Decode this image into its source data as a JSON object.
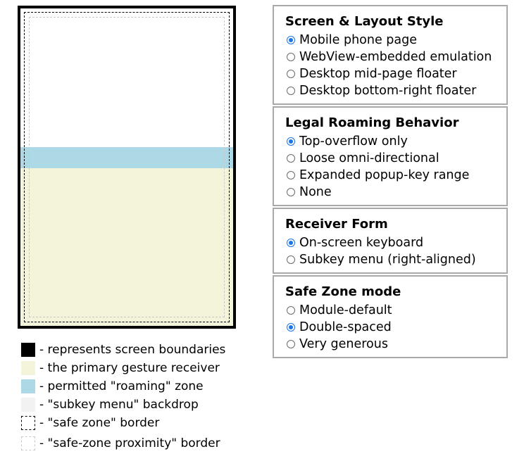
{
  "legend": [
    {
      "swatch": "black",
      "text": "- represents screen boundaries"
    },
    {
      "swatch": "receiver",
      "text": "- the primary gesture receiver"
    },
    {
      "swatch": "roaming",
      "text": "- permitted \"roaming\" zone"
    },
    {
      "swatch": "backdrop",
      "text": "- \"subkey menu\" backdrop"
    },
    {
      "swatch": "safe",
      "text": "- \"safe zone\" border"
    },
    {
      "swatch": "prox",
      "text": "- \"safe-zone proximity\" border"
    }
  ],
  "groups": [
    {
      "title": "Screen & Layout Style",
      "options": [
        {
          "label": "Mobile phone page",
          "checked": true
        },
        {
          "label": "WebView-embedded emulation",
          "checked": false
        },
        {
          "label": "Desktop mid-page floater",
          "checked": false
        },
        {
          "label": "Desktop bottom-right floater",
          "checked": false
        }
      ]
    },
    {
      "title": "Legal Roaming Behavior",
      "options": [
        {
          "label": "Top-overflow only",
          "checked": true
        },
        {
          "label": "Loose omni-directional",
          "checked": false
        },
        {
          "label": "Expanded popup-key range",
          "checked": false
        },
        {
          "label": "None",
          "checked": false
        }
      ]
    },
    {
      "title": "Receiver Form",
      "options": [
        {
          "label": "On-screen keyboard",
          "checked": true
        },
        {
          "label": "Subkey menu (right-aligned)",
          "checked": false
        }
      ]
    },
    {
      "title": "Safe Zone mode",
      "options": [
        {
          "label": "Module-default",
          "checked": false
        },
        {
          "label": "Double-spaced",
          "checked": true
        },
        {
          "label": "Very generous",
          "checked": false
        }
      ]
    }
  ],
  "colors": {
    "screen_border": "#000000",
    "receiver": "#f4f4da",
    "roaming": "#add8e6",
    "backdrop": "#f2f2f2",
    "radio_checked": "#1a73e8"
  }
}
